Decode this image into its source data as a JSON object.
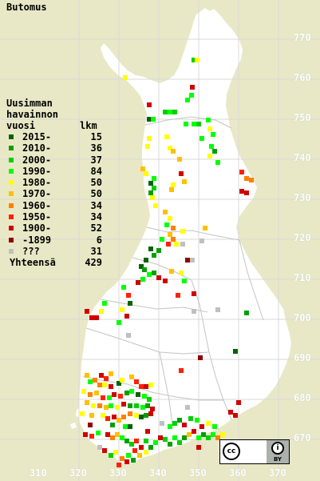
{
  "title": "Butomus",
  "legend": {
    "heading_lines": [
      "Uusimman",
      "havainnon"
    ],
    "heading_last": "vuosi",
    "count_header": "lkm",
    "rows": [
      {
        "label": "2015-",
        "count": "15",
        "color": "#006400"
      },
      {
        "label": "2010-",
        "count": "36",
        "color": "#00a000"
      },
      {
        "label": "2000-",
        "count": "37",
        "color": "#00d000"
      },
      {
        "label": "1990-",
        "count": "84",
        "color": "#00ff00"
      },
      {
        "label": "1980-",
        "count": "50",
        "color": "#ffff00"
      },
      {
        "label": "1970-",
        "count": "50",
        "color": "#ffc000"
      },
      {
        "label": "1960-",
        "count": "34",
        "color": "#ff8000"
      },
      {
        "label": "1950-",
        "count": "34",
        "color": "#ff2000"
      },
      {
        "label": "1900-",
        "count": "52",
        "color": "#d00000"
      },
      {
        "label": "-1899",
        "count": "6",
        "color": "#900000"
      },
      {
        "label": "???",
        "count": "31",
        "color": "#c0c0c0"
      }
    ],
    "total_label": "Yhteensä",
    "total_count": "429"
  },
  "grid": {
    "y_ticks": [
      "770",
      "760",
      "750",
      "740",
      "730",
      "720",
      "710",
      "700",
      "690",
      "680",
      "670"
    ],
    "x_ticks": [
      "310",
      "320",
      "330",
      "340",
      "350",
      "360",
      "370"
    ]
  },
  "license": {
    "cc_text": "cc",
    "by_text": "BY"
  },
  "colors": {
    "background": "#e9e8c6",
    "land": "#ffffff",
    "border_lines": "#c8c8c8",
    "grid_lines": "#d8d8d8"
  }
}
